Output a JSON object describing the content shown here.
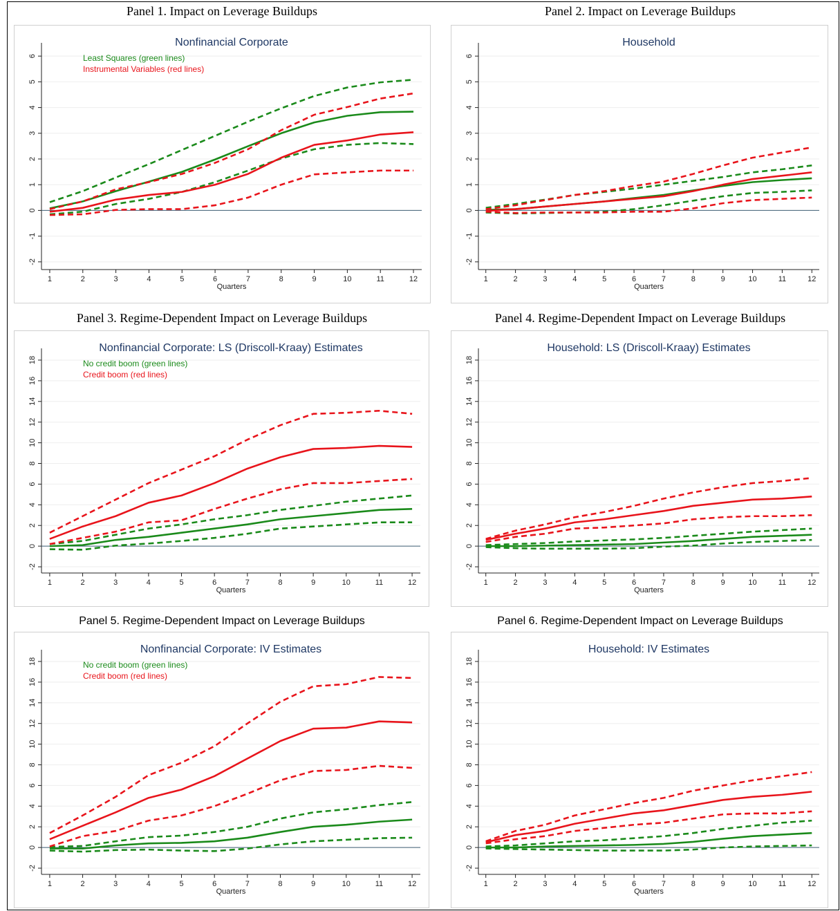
{
  "chart_data": [
    {
      "type": "line",
      "panel_title": "Panel 1. Impact on Leverage Buildups",
      "heading_style": "serif",
      "title": "Nonfinancial Corporate",
      "xlabel": "Quarters",
      "legend": [
        {
          "text": "Least Squares (green lines)",
          "color": "#1a8a1a"
        },
        {
          "text": "Instrumental Variables (red lines)",
          "color": "#e8141b"
        }
      ],
      "x": [
        1,
        2,
        3,
        4,
        5,
        6,
        7,
        8,
        9,
        10,
        11,
        12
      ],
      "xlim": [
        0.75,
        12.25
      ],
      "xticks": [
        1,
        2,
        3,
        4,
        5,
        6,
        7,
        8,
        9,
        10,
        11,
        12
      ],
      "ylim": [
        -2.3,
        6.3
      ],
      "yticks": [
        -2,
        -1,
        0,
        1,
        2,
        3,
        4,
        5,
        6
      ],
      "grid": true,
      "series": [
        {
          "color": "#1a8a1a",
          "dashed": false,
          "values": [
            0.08,
            0.35,
            0.75,
            1.12,
            1.5,
            1.98,
            2.5,
            3.0,
            3.42,
            3.68,
            3.82,
            3.84
          ]
        },
        {
          "color": "#1a8a1a",
          "dashed": true,
          "values": [
            0.32,
            0.75,
            1.28,
            1.8,
            2.35,
            2.9,
            3.45,
            3.97,
            4.45,
            4.78,
            4.98,
            5.08
          ]
        },
        {
          "color": "#1a8a1a",
          "dashed": true,
          "values": [
            -0.15,
            -0.05,
            0.25,
            0.45,
            0.72,
            1.1,
            1.55,
            2.02,
            2.38,
            2.55,
            2.62,
            2.58
          ]
        },
        {
          "color": "#e8141b",
          "dashed": false,
          "values": [
            -0.05,
            0.1,
            0.42,
            0.6,
            0.72,
            1.0,
            1.42,
            2.05,
            2.55,
            2.72,
            2.95,
            3.04
          ]
        },
        {
          "color": "#e8141b",
          "dashed": true,
          "values": [
            0.05,
            0.35,
            0.82,
            1.1,
            1.42,
            1.85,
            2.38,
            3.12,
            3.72,
            4.02,
            4.35,
            4.55
          ]
        },
        {
          "color": "#e8141b",
          "dashed": true,
          "values": [
            -0.18,
            -0.15,
            0.02,
            0.05,
            0.05,
            0.2,
            0.5,
            1.0,
            1.4,
            1.48,
            1.55,
            1.55
          ]
        }
      ]
    },
    {
      "type": "line",
      "panel_title": "Panel 2. Impact on Leverage Buildups",
      "heading_style": "serif",
      "title": "Household",
      "xlabel": "Quarters",
      "x": [
        1,
        2,
        3,
        4,
        5,
        6,
        7,
        8,
        9,
        10,
        11,
        12
      ],
      "xlim": [
        0.75,
        12.25
      ],
      "xticks": [
        1,
        2,
        3,
        4,
        5,
        6,
        7,
        8,
        9,
        10,
        11,
        12
      ],
      "ylim": [
        -2.3,
        6.3
      ],
      "yticks": [
        -2,
        -1,
        0,
        1,
        2,
        3,
        4,
        5,
        6
      ],
      "grid": true,
      "series": [
        {
          "color": "#1a8a1a",
          "dashed": false,
          "values": [
            0.02,
            0.05,
            0.15,
            0.25,
            0.35,
            0.48,
            0.6,
            0.78,
            0.95,
            1.1,
            1.18,
            1.25
          ]
        },
        {
          "color": "#1a8a1a",
          "dashed": true,
          "values": [
            0.1,
            0.25,
            0.42,
            0.6,
            0.72,
            0.85,
            1.0,
            1.15,
            1.3,
            1.48,
            1.6,
            1.75
          ]
        },
        {
          "color": "#1a8a1a",
          "dashed": true,
          "values": [
            -0.08,
            -0.12,
            -0.1,
            -0.08,
            -0.05,
            0.05,
            0.2,
            0.38,
            0.55,
            0.68,
            0.72,
            0.78
          ]
        },
        {
          "color": "#e8141b",
          "dashed": false,
          "values": [
            -0.02,
            0.05,
            0.15,
            0.25,
            0.35,
            0.45,
            0.55,
            0.75,
            1.0,
            1.22,
            1.35,
            1.48
          ]
        },
        {
          "color": "#e8141b",
          "dashed": true,
          "values": [
            0.05,
            0.2,
            0.4,
            0.6,
            0.75,
            0.95,
            1.12,
            1.42,
            1.75,
            2.05,
            2.25,
            2.45
          ]
        },
        {
          "color": "#e8141b",
          "dashed": true,
          "values": [
            -0.05,
            -0.1,
            -0.08,
            -0.08,
            -0.08,
            -0.05,
            -0.05,
            0.08,
            0.28,
            0.4,
            0.45,
            0.5
          ]
        }
      ]
    },
    {
      "type": "line",
      "panel_title": "Panel 3. Regime-Dependent Impact on Leverage Buildups",
      "heading_style": "serif",
      "title": "Nonfinancial Corporate: LS (Driscoll-Kraay) Estimates",
      "xlabel": "Quarters",
      "legend": [
        {
          "text": "No credit boom (green lines)",
          "color": "#1a8a1a"
        },
        {
          "text": "Credit boom (red lines)",
          "color": "#e8141b"
        }
      ],
      "x": [
        1,
        2,
        3,
        4,
        5,
        6,
        7,
        8,
        9,
        10,
        11,
        12
      ],
      "xlim": [
        0.75,
        12.25
      ],
      "xticks": [
        1,
        2,
        3,
        4,
        5,
        6,
        7,
        8,
        9,
        10,
        11,
        12
      ],
      "ylim": [
        -2.6,
        18.6
      ],
      "yticks": [
        -2,
        0,
        2,
        4,
        6,
        8,
        10,
        12,
        14,
        16,
        18
      ],
      "grid": true,
      "series": [
        {
          "color": "#1a8a1a",
          "dashed": false,
          "values": [
            0.0,
            0.1,
            0.6,
            0.9,
            1.3,
            1.7,
            2.1,
            2.6,
            2.9,
            3.2,
            3.5,
            3.6
          ]
        },
        {
          "color": "#1a8a1a",
          "dashed": true,
          "values": [
            0.2,
            0.5,
            1.1,
            1.7,
            2.1,
            2.6,
            3.0,
            3.5,
            3.9,
            4.3,
            4.6,
            4.9
          ]
        },
        {
          "color": "#1a8a1a",
          "dashed": true,
          "values": [
            -0.3,
            -0.35,
            0.05,
            0.25,
            0.5,
            0.8,
            1.2,
            1.7,
            1.9,
            2.1,
            2.3,
            2.3
          ]
        },
        {
          "color": "#e8141b",
          "dashed": false,
          "values": [
            0.7,
            1.9,
            2.9,
            4.2,
            4.9,
            6.1,
            7.5,
            8.6,
            9.4,
            9.5,
            9.7,
            9.6
          ]
        },
        {
          "color": "#e8141b",
          "dashed": true,
          "values": [
            1.3,
            2.9,
            4.5,
            6.1,
            7.4,
            8.7,
            10.3,
            11.7,
            12.8,
            12.9,
            13.1,
            12.8
          ]
        },
        {
          "color": "#e8141b",
          "dashed": true,
          "values": [
            0.2,
            0.8,
            1.4,
            2.3,
            2.5,
            3.6,
            4.6,
            5.5,
            6.1,
            6.1,
            6.3,
            6.5
          ]
        }
      ]
    },
    {
      "type": "line",
      "panel_title": "Panel 4. Regime-Dependent Impact on Leverage Buildups",
      "heading_style": "serif",
      "title": "Household: LS (Driscoll-Kraay) Estimates",
      "xlabel": "Quarters",
      "x": [
        1,
        2,
        3,
        4,
        5,
        6,
        7,
        8,
        9,
        10,
        11,
        12
      ],
      "xlim": [
        0.75,
        12.25
      ],
      "xticks": [
        1,
        2,
        3,
        4,
        5,
        6,
        7,
        8,
        9,
        10,
        11,
        12
      ],
      "ylim": [
        -2.6,
        18.6
      ],
      "yticks": [
        -2,
        0,
        2,
        4,
        6,
        8,
        10,
        12,
        14,
        16,
        18
      ],
      "grid": true,
      "series": [
        {
          "color": "#1a8a1a",
          "dashed": false,
          "values": [
            0.0,
            0.0,
            0.05,
            0.1,
            0.15,
            0.2,
            0.35,
            0.5,
            0.7,
            0.9,
            1.0,
            1.1
          ]
        },
        {
          "color": "#1a8a1a",
          "dashed": true,
          "values": [
            0.1,
            0.2,
            0.3,
            0.45,
            0.55,
            0.65,
            0.8,
            1.0,
            1.2,
            1.4,
            1.55,
            1.7
          ]
        },
        {
          "color": "#1a8a1a",
          "dashed": true,
          "values": [
            -0.1,
            -0.2,
            -0.25,
            -0.25,
            -0.25,
            -0.2,
            -0.05,
            0.05,
            0.25,
            0.4,
            0.5,
            0.6
          ]
        },
        {
          "color": "#e8141b",
          "dashed": false,
          "values": [
            0.6,
            1.2,
            1.7,
            2.3,
            2.6,
            3.0,
            3.4,
            3.9,
            4.2,
            4.5,
            4.6,
            4.8
          ]
        },
        {
          "color": "#e8141b",
          "dashed": true,
          "values": [
            0.7,
            1.5,
            2.1,
            2.8,
            3.3,
            3.9,
            4.6,
            5.2,
            5.7,
            6.1,
            6.3,
            6.6
          ]
        },
        {
          "color": "#e8141b",
          "dashed": true,
          "values": [
            0.4,
            0.9,
            1.2,
            1.7,
            1.8,
            2.0,
            2.2,
            2.6,
            2.8,
            2.9,
            2.9,
            3.0
          ]
        }
      ]
    },
    {
      "type": "line",
      "panel_title": "Panel 5. Regime-Dependent Impact on Leverage Buildups",
      "heading_style": "sans",
      "title": "Nonfinancial Corporate: IV Estimates",
      "xlabel": "Quarters",
      "legend": [
        {
          "text": "No credit boom (green lines)",
          "color": "#1a8a1a"
        },
        {
          "text": "Credit boom (red lines)",
          "color": "#e8141b"
        }
      ],
      "x": [
        1,
        2,
        3,
        4,
        5,
        6,
        7,
        8,
        9,
        10,
        11,
        12
      ],
      "xlim": [
        0.75,
        12.25
      ],
      "xticks": [
        1,
        2,
        3,
        4,
        5,
        6,
        7,
        8,
        9,
        10,
        11,
        12
      ],
      "ylim": [
        -2.6,
        18.6
      ],
      "yticks": [
        -2,
        0,
        2,
        4,
        6,
        8,
        10,
        12,
        14,
        16,
        18
      ],
      "grid": true,
      "series": [
        {
          "color": "#1a8a1a",
          "dashed": false,
          "values": [
            -0.1,
            -0.1,
            0.2,
            0.4,
            0.45,
            0.6,
            0.95,
            1.5,
            2.0,
            2.2,
            2.5,
            2.7
          ]
        },
        {
          "color": "#1a8a1a",
          "dashed": true,
          "values": [
            0.05,
            0.15,
            0.6,
            1.0,
            1.15,
            1.5,
            2.0,
            2.8,
            3.4,
            3.7,
            4.1,
            4.4
          ]
        },
        {
          "color": "#1a8a1a",
          "dashed": true,
          "values": [
            -0.3,
            -0.4,
            -0.25,
            -0.2,
            -0.3,
            -0.35,
            -0.1,
            0.3,
            0.6,
            0.75,
            0.9,
            0.95
          ]
        },
        {
          "color": "#e8141b",
          "dashed": false,
          "values": [
            0.8,
            2.1,
            3.4,
            4.8,
            5.6,
            6.9,
            8.6,
            10.3,
            11.5,
            11.6,
            12.2,
            12.1
          ]
        },
        {
          "color": "#e8141b",
          "dashed": true,
          "values": [
            1.4,
            3.1,
            4.9,
            7.0,
            8.2,
            9.8,
            12.0,
            14.1,
            15.6,
            15.8,
            16.5,
            16.4
          ]
        },
        {
          "color": "#e8141b",
          "dashed": true,
          "values": [
            0.1,
            1.1,
            1.6,
            2.6,
            3.1,
            4.0,
            5.2,
            6.5,
            7.4,
            7.5,
            7.9,
            7.7
          ]
        }
      ]
    },
    {
      "type": "line",
      "panel_title": "Panel 6. Regime-Dependent Impact on Leverage Buildups",
      "heading_style": "sans",
      "title": "Household: IV Estimates",
      "xlabel": "Quarters",
      "x": [
        1,
        2,
        3,
        4,
        5,
        6,
        7,
        8,
        9,
        10,
        11,
        12
      ],
      "xlim": [
        0.75,
        12.25
      ],
      "xticks": [
        1,
        2,
        3,
        4,
        5,
        6,
        7,
        8,
        9,
        10,
        11,
        12
      ],
      "ylim": [
        -2.6,
        18.6
      ],
      "yticks": [
        -2,
        0,
        2,
        4,
        6,
        8,
        10,
        12,
        14,
        16,
        18
      ],
      "grid": true,
      "series": [
        {
          "color": "#1a8a1a",
          "dashed": false,
          "values": [
            0,
            0,
            0.1,
            0.15,
            0.2,
            0.25,
            0.35,
            0.55,
            0.85,
            1.1,
            1.25,
            1.4
          ]
        },
        {
          "color": "#1a8a1a",
          "dashed": true,
          "values": [
            0.1,
            0.2,
            0.4,
            0.6,
            0.7,
            0.9,
            1.1,
            1.4,
            1.8,
            2.1,
            2.4,
            2.6
          ]
        },
        {
          "color": "#1a8a1a",
          "dashed": true,
          "values": [
            -0.1,
            -0.15,
            -0.2,
            -0.25,
            -0.3,
            -0.3,
            -0.3,
            -0.2,
            0.0,
            0.1,
            0.15,
            0.2
          ]
        },
        {
          "color": "#e8141b",
          "dashed": false,
          "values": [
            0.5,
            1.2,
            1.6,
            2.3,
            2.8,
            3.3,
            3.6,
            4.1,
            4.6,
            4.9,
            5.1,
            5.4
          ]
        },
        {
          "color": "#e8141b",
          "dashed": true,
          "values": [
            0.6,
            1.6,
            2.2,
            3.1,
            3.7,
            4.3,
            4.8,
            5.5,
            6.0,
            6.5,
            6.9,
            7.3
          ]
        },
        {
          "color": "#e8141b",
          "dashed": true,
          "values": [
            0.4,
            0.8,
            1.1,
            1.6,
            1.9,
            2.2,
            2.4,
            2.8,
            3.2,
            3.3,
            3.3,
            3.5
          ]
        }
      ]
    }
  ]
}
